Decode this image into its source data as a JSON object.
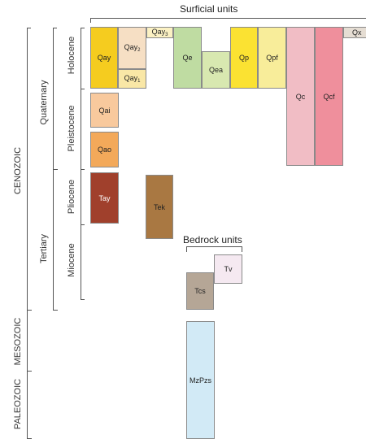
{
  "headings": {
    "surficial": "Surficial units",
    "bedrock": "Bedrock units"
  },
  "timescale": {
    "eras": {
      "cenozoic": "CENOZOIC",
      "mesozoic": "MESOZOIC",
      "paleozoic": "PALEOZOIC"
    },
    "periods": {
      "quaternary": "Quaternary",
      "tertiary": "Tertiary"
    },
    "epochs": {
      "holocene": "Holocene",
      "pleistocene": "Pleistocene",
      "pliocene": "Pliocene",
      "miocene": "Miocene"
    }
  },
  "units": {
    "qay": {
      "label": "Qay",
      "color": "#f5cc1f"
    },
    "qay2": {
      "label": "Qay",
      "sub": "2",
      "color": "#f6dfc4"
    },
    "qay1": {
      "label": "Qay",
      "sub": "1",
      "color": "#f9e7a6"
    },
    "qay3": {
      "label": "Qay",
      "sub": "3",
      "color": "#fbf1c3"
    },
    "qe": {
      "label": "Qe",
      "color": "#bfdca2"
    },
    "qea": {
      "label": "Qea",
      "color": "#d8e8b0"
    },
    "qp": {
      "label": "Qp",
      "color": "#fbe232"
    },
    "qpf": {
      "label": "Qpf",
      "color": "#f8ed9a"
    },
    "qc": {
      "label": "Qc",
      "color": "#f1bdc5"
    },
    "qcf": {
      "label": "Qcf",
      "color": "#ef8f9c"
    },
    "qx": {
      "label": "Qx",
      "color": "#e5ddd3"
    },
    "qai": {
      "label": "Qai",
      "color": "#f8c99d"
    },
    "qao": {
      "label": "Qao",
      "color": "#f3a95a"
    },
    "tay": {
      "label": "Tay",
      "color": "#a0402c"
    },
    "tek": {
      "label": "Tek",
      "color": "#a97842"
    },
    "tv": {
      "label": "Tv",
      "color": "#f5e9f1"
    },
    "tcs": {
      "label": "Tcs",
      "color": "#b5a696"
    },
    "mzpzs": {
      "label": "MzPzs",
      "color": "#d2eaf6"
    }
  }
}
